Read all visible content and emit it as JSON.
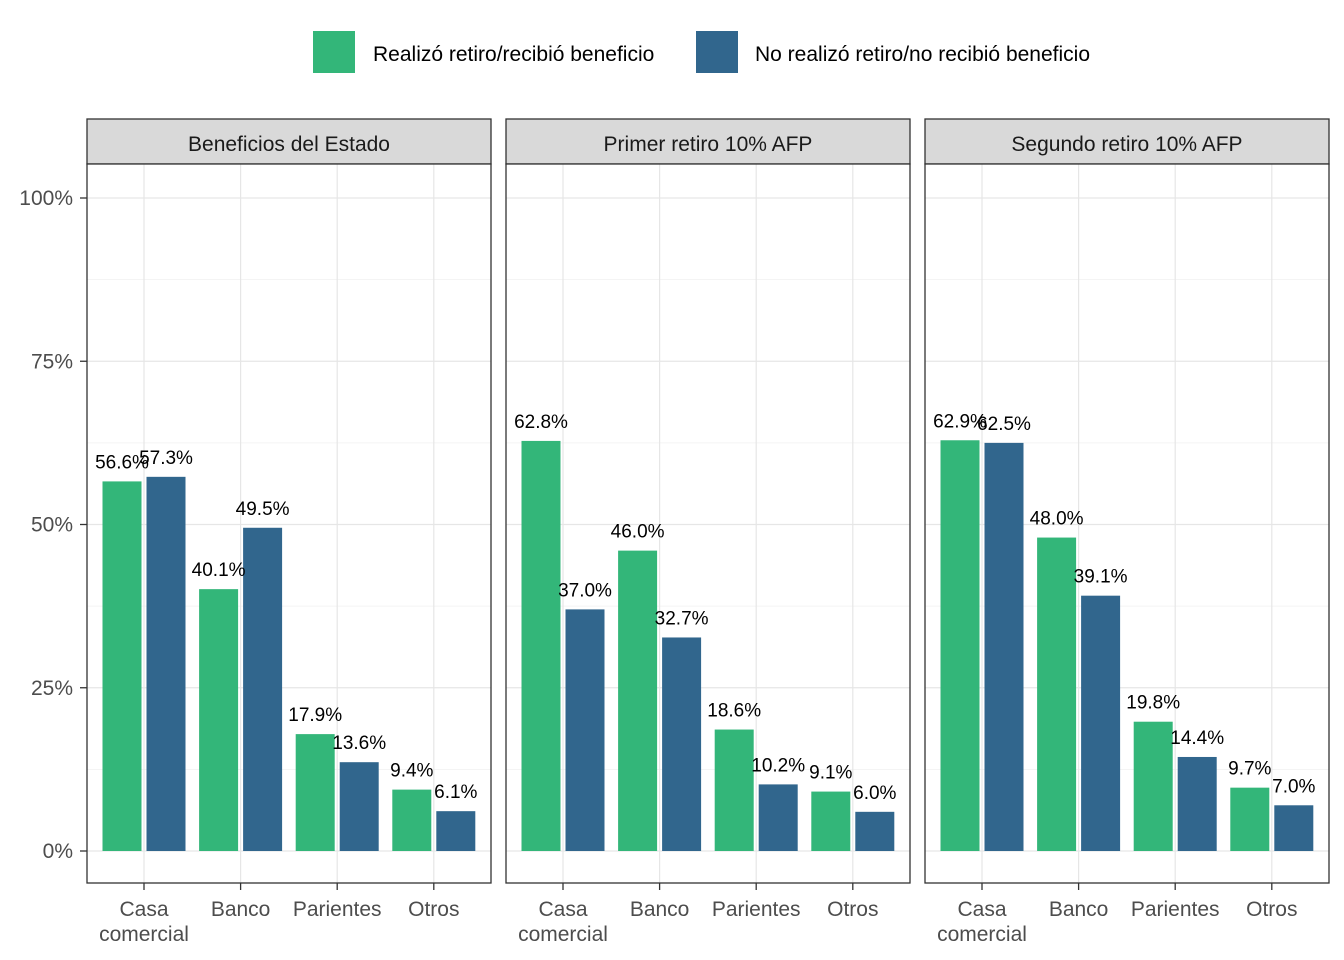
{
  "chart_data": {
    "type": "bar",
    "categories": [
      "Casa\ncomercial",
      "Banco",
      "Parientes",
      "Otros"
    ],
    "y_ticks": [
      "0%",
      "25%",
      "50%",
      "75%",
      "100%"
    ],
    "y_tick_values": [
      0,
      25,
      50,
      75,
      100
    ],
    "ylim": [
      -5,
      105
    ],
    "grid": true,
    "legend_position": "top",
    "legend": [
      {
        "name": "Realizó retiro/recibió beneficio",
        "color": "#33B679"
      },
      {
        "name": "No realizó retiro/no recibió beneficio",
        "color": "#31668D"
      }
    ],
    "facets": [
      {
        "title": "Beneficios del Estado",
        "series": [
          {
            "name": "Realizó retiro/recibió beneficio",
            "values": [
              56.6,
              40.1,
              17.9,
              9.4
            ],
            "labels": [
              "56.6%",
              "40.1%",
              "17.9%",
              "9.4%"
            ]
          },
          {
            "name": "No realizó retiro/no recibió beneficio",
            "values": [
              57.3,
              49.5,
              13.6,
              6.1
            ],
            "labels": [
              "57.3%",
              "49.5%",
              "13.6%",
              "6.1%"
            ]
          }
        ]
      },
      {
        "title": "Primer retiro 10% AFP",
        "series": [
          {
            "name": "Realizó retiro/recibió beneficio",
            "values": [
              62.8,
              46.0,
              18.6,
              9.1
            ],
            "labels": [
              "62.8%",
              "46.0%",
              "18.6%",
              "9.1%"
            ]
          },
          {
            "name": "No realizó retiro/no recibió beneficio",
            "values": [
              37.0,
              32.7,
              10.2,
              6.0
            ],
            "labels": [
              "37.0%",
              "32.7%",
              "10.2%",
              "6.0%"
            ]
          }
        ]
      },
      {
        "title": "Segundo retiro 10% AFP",
        "series": [
          {
            "name": "Realizó retiro/recibió beneficio",
            "values": [
              62.9,
              48.0,
              19.8,
              9.7
            ],
            "labels": [
              "62.9%",
              "48.0%",
              "19.8%",
              "9.7%"
            ]
          },
          {
            "name": "No realizó retiro/no recibió beneficio",
            "values": [
              62.5,
              39.1,
              14.4,
              7.0
            ],
            "labels": [
              "62.5%",
              "39.1%",
              "14.4%",
              "7.0%"
            ]
          }
        ]
      }
    ]
  }
}
